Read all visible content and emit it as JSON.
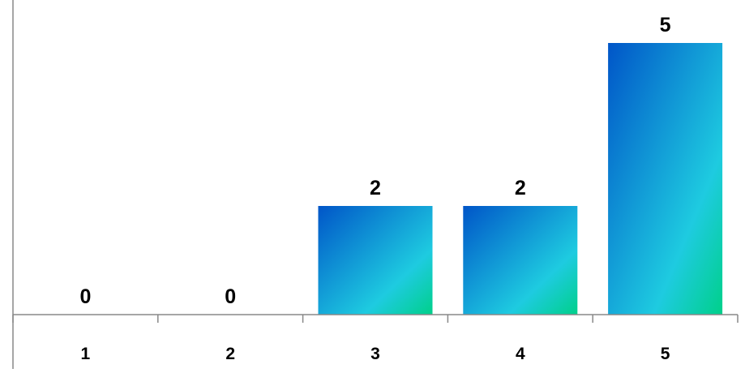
{
  "chart_data": {
    "type": "bar",
    "categories": [
      "1",
      "2",
      "3",
      "4",
      "5"
    ],
    "values": [
      0,
      0,
      2,
      2,
      5
    ],
    "data_labels": [
      "0",
      "0",
      "2",
      "2",
      "5"
    ],
    "ylim": [
      0,
      5
    ],
    "grid": false,
    "legend": "none",
    "bar_gradient": [
      "#0055c8",
      "#1ecbe0",
      "#00d08a"
    ],
    "axis_color": "#888888"
  }
}
